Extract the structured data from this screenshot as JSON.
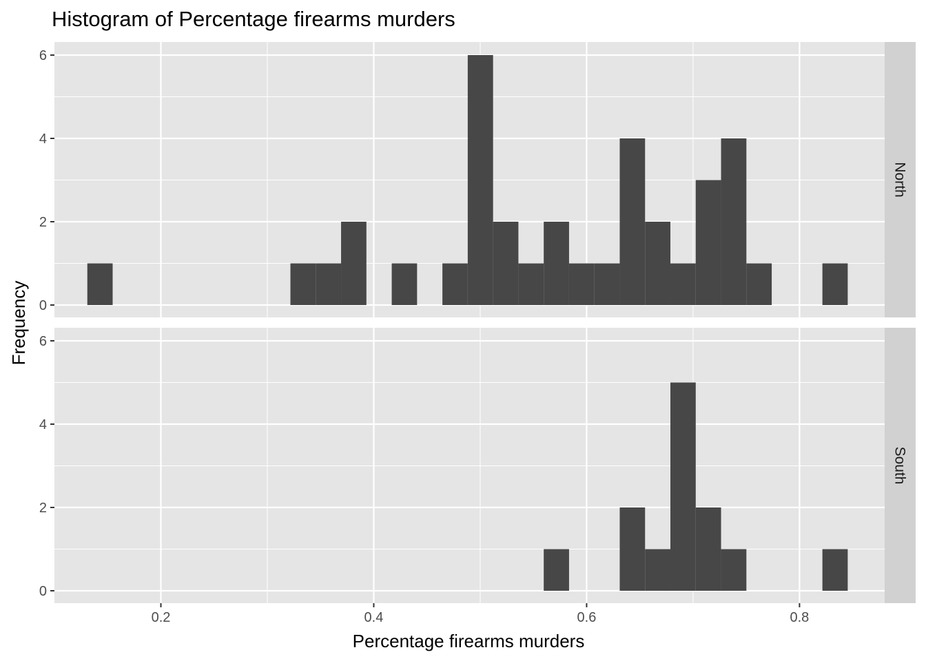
{
  "chart_data": {
    "type": "bar",
    "title": "Histogram of Percentage firearms murders",
    "xlabel": "Percentage firearms murders",
    "ylabel": "Frequency",
    "xlim": [
      0.1,
      0.88
    ],
    "ylim": [
      0,
      6.3
    ],
    "x_ticks": [
      0.2,
      0.4,
      0.6,
      0.8
    ],
    "x_tick_labels": [
      "0.2",
      "0.4",
      "0.6",
      "0.8"
    ],
    "y_ticks": [
      0,
      2,
      4,
      6
    ],
    "y_tick_labels": [
      "0",
      "2",
      "4",
      "6"
    ],
    "bin_width": 0.0238,
    "grid": true,
    "panels": [
      {
        "name": "North",
        "bins": [
          {
            "x": 0.1428,
            "y": 1
          },
          {
            "x": 0.3336,
            "y": 1
          },
          {
            "x": 0.3574,
            "y": 1
          },
          {
            "x": 0.3812,
            "y": 2
          },
          {
            "x": 0.4288,
            "y": 1
          },
          {
            "x": 0.4764,
            "y": 1
          },
          {
            "x": 0.5002,
            "y": 6
          },
          {
            "x": 0.524,
            "y": 2
          },
          {
            "x": 0.5478,
            "y": 1
          },
          {
            "x": 0.5716,
            "y": 2
          },
          {
            "x": 0.5954,
            "y": 1
          },
          {
            "x": 0.6192,
            "y": 1
          },
          {
            "x": 0.643,
            "y": 4
          },
          {
            "x": 0.6668,
            "y": 2
          },
          {
            "x": 0.6906,
            "y": 1
          },
          {
            "x": 0.7144,
            "y": 3
          },
          {
            "x": 0.7382,
            "y": 4
          },
          {
            "x": 0.762,
            "y": 1
          },
          {
            "x": 0.8334,
            "y": 1
          }
        ]
      },
      {
        "name": "South",
        "bins": [
          {
            "x": 0.5716,
            "y": 1
          },
          {
            "x": 0.643,
            "y": 2
          },
          {
            "x": 0.6668,
            "y": 1
          },
          {
            "x": 0.6906,
            "y": 5
          },
          {
            "x": 0.7144,
            "y": 2
          },
          {
            "x": 0.7382,
            "y": 1
          },
          {
            "x": 0.8334,
            "y": 1
          }
        ]
      }
    ]
  },
  "colors": {
    "panel_background": "#e5e5e5",
    "grid": "#ffffff",
    "bar_fill": "#474747",
    "strip_background": "#d1d1d1",
    "tick_mark": "#333333"
  }
}
